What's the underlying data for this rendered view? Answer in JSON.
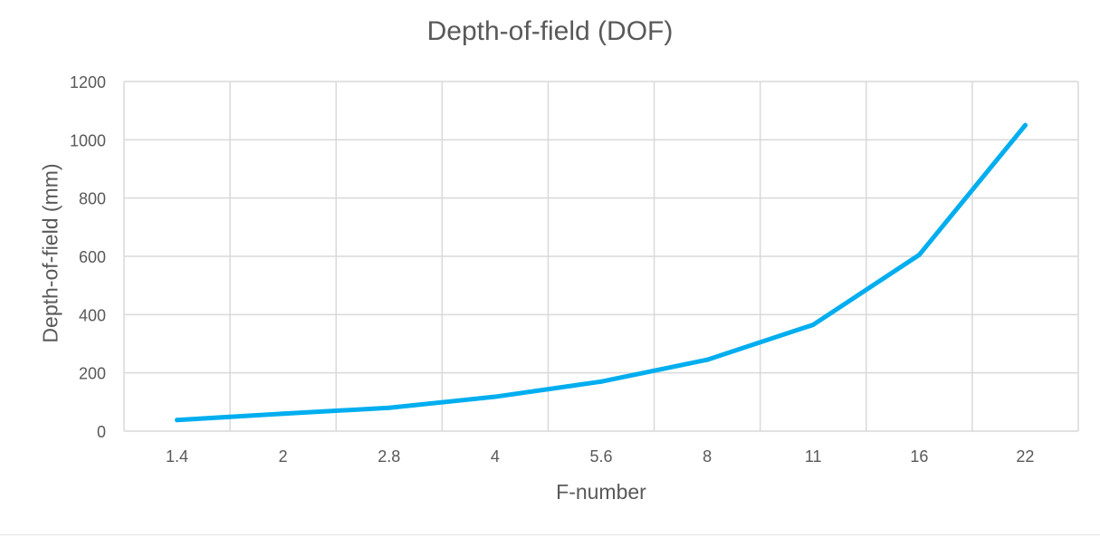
{
  "chart_data": {
    "type": "line",
    "title": "Depth-of-field (DOF)",
    "xlabel": "F-number",
    "ylabel": "Depth-of-field (mm)",
    "categories": [
      "1.4",
      "2",
      "2.8",
      "4",
      "5.6",
      "8",
      "11",
      "16",
      "22"
    ],
    "series": [
      {
        "values": [
          38,
          60,
          80,
          118,
          170,
          245,
          365,
          605,
          1050
        ]
      }
    ],
    "ylim": [
      0,
      1200
    ],
    "yticks": [
      0,
      200,
      400,
      600,
      800,
      1000,
      1200
    ],
    "grid": true,
    "legend": "none",
    "colors": {
      "line": "#00AEEF",
      "grid": "#d9d9d9",
      "text": "#595959"
    }
  }
}
